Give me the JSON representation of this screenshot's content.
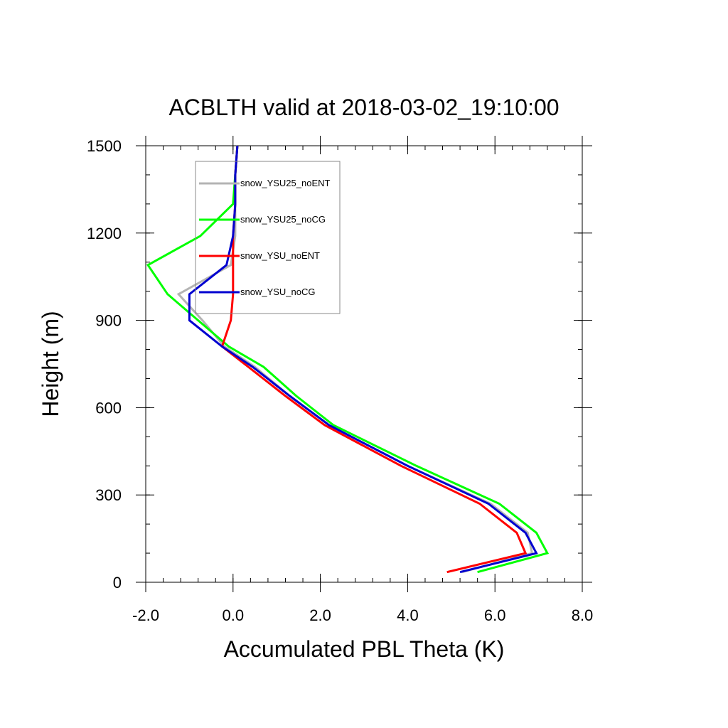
{
  "chart_data": {
    "type": "line",
    "title": "ACBLTH valid at 2018-03-02_19:10:00",
    "xlabel": "Accumulated PBL Theta (K)",
    "ylabel": "Height (m)",
    "xlim": [
      -2.0,
      8.0
    ],
    "ylim": [
      0,
      1500
    ],
    "xticks": [
      -2.0,
      0.0,
      2.0,
      4.0,
      6.0,
      8.0
    ],
    "xtick_labels": [
      "-2.0",
      "0.0",
      "2.0",
      "4.0",
      "6.0",
      "8.0"
    ],
    "yticks": [
      0,
      300,
      600,
      900,
      1200,
      1500
    ],
    "ytick_labels": [
      "0",
      "300",
      "600",
      "900",
      "1200",
      "1500"
    ],
    "grid": false,
    "legend_position": "top-left",
    "series": [
      {
        "name": "snow_YSU25_noENT",
        "color": "#b4b4b4",
        "points": [
          [
            5.25,
            35
          ],
          [
            6.85,
            100
          ],
          [
            6.75,
            170
          ],
          [
            5.9,
            270
          ],
          [
            4.0,
            400
          ],
          [
            2.2,
            540
          ],
          [
            1.3,
            640
          ],
          [
            0.5,
            740
          ],
          [
            -0.2,
            810
          ],
          [
            -0.7,
            900
          ],
          [
            -1.25,
            990
          ],
          [
            -0.05,
            1090
          ],
          [
            0.05,
            1190
          ],
          [
            0.05,
            1300
          ],
          [
            0.05,
            1400
          ],
          [
            0.1,
            1500
          ]
        ]
      },
      {
        "name": "snow_YSU25_noCG",
        "color": "#00ff00",
        "points": [
          [
            5.6,
            35
          ],
          [
            7.2,
            100
          ],
          [
            6.95,
            170
          ],
          [
            6.1,
            270
          ],
          [
            4.2,
            400
          ],
          [
            2.3,
            540
          ],
          [
            1.45,
            640
          ],
          [
            0.7,
            740
          ],
          [
            -0.1,
            810
          ],
          [
            -0.8,
            900
          ],
          [
            -1.5,
            990
          ],
          [
            -1.95,
            1090
          ],
          [
            -0.75,
            1190
          ],
          [
            0.0,
            1300
          ],
          [
            0.05,
            1400
          ],
          [
            0.1,
            1500
          ]
        ]
      },
      {
        "name": "snow_YSU_noENT",
        "color": "#ff0000",
        "points": [
          [
            4.9,
            35
          ],
          [
            6.7,
            100
          ],
          [
            6.5,
            170
          ],
          [
            5.65,
            270
          ],
          [
            3.85,
            400
          ],
          [
            2.1,
            540
          ],
          [
            1.2,
            640
          ],
          [
            0.35,
            740
          ],
          [
            -0.25,
            810
          ],
          [
            -0.05,
            900
          ],
          [
            0.0,
            990
          ],
          [
            0.0,
            1090
          ],
          [
            0.0,
            1190
          ],
          [
            0.05,
            1300
          ],
          [
            0.05,
            1400
          ],
          [
            0.1,
            1500
          ]
        ]
      },
      {
        "name": "snow_YSU_noCG",
        "color": "#0000d0",
        "points": [
          [
            5.2,
            35
          ],
          [
            6.95,
            100
          ],
          [
            6.7,
            170
          ],
          [
            5.85,
            270
          ],
          [
            4.0,
            400
          ],
          [
            2.2,
            540
          ],
          [
            1.3,
            640
          ],
          [
            0.45,
            740
          ],
          [
            -0.25,
            810
          ],
          [
            -1.0,
            900
          ],
          [
            -1.0,
            990
          ],
          [
            -0.15,
            1090
          ],
          [
            0.0,
            1190
          ],
          [
            0.05,
            1300
          ],
          [
            0.05,
            1400
          ],
          [
            0.1,
            1500
          ]
        ]
      }
    ]
  }
}
